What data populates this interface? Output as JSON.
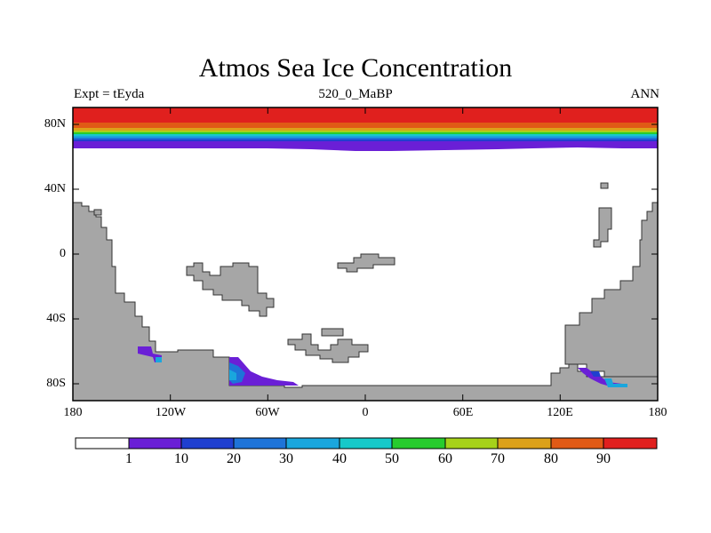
{
  "title": "Atmos Sea Ice Concentration",
  "subtitle_left": "Expt = tEyda",
  "subtitle_center": "520_0_MaBP",
  "subtitle_right": "ANN",
  "lat_labels": [
    "80N",
    "40N",
    "0",
    "40S",
    "80S"
  ],
  "lon_labels": [
    "180",
    "120W",
    "60W",
    "0",
    "60E",
    "120E",
    "180"
  ],
  "colorbar": {
    "labels": [
      "1",
      "10",
      "20",
      "30",
      "40",
      "50",
      "60",
      "70",
      "80",
      "90"
    ],
    "colors": [
      "#ffffff",
      "#6a1fd6",
      "#1f3fcf",
      "#1e74d8",
      "#1aa6dd",
      "#17c9c9",
      "#27cc2e",
      "#a6d21a",
      "#dca11a",
      "#e05a16",
      "#e0201e"
    ]
  },
  "colors": {
    "land": "#a6a6a6",
    "ocean": "#ffffff"
  }
}
